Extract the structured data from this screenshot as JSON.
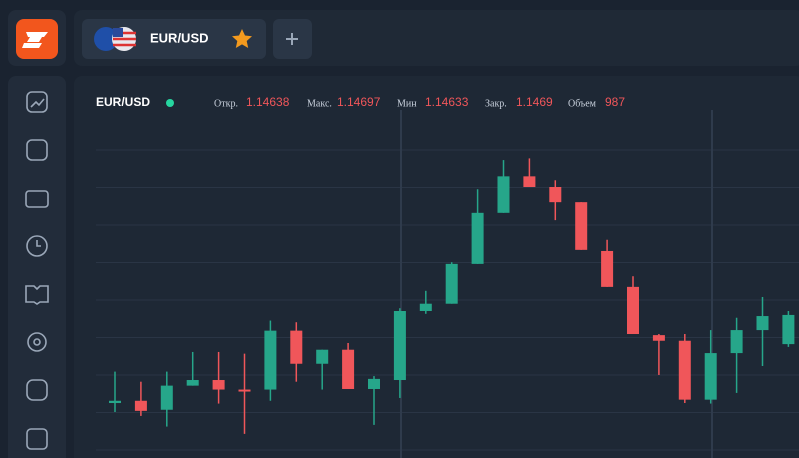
{
  "tab": {
    "symbol": "EUR/USD"
  },
  "header": {
    "symbol": "EUR/USD",
    "open_label": "Откр.",
    "open": 1.14638,
    "high_label": "Макс.",
    "high": 1.14697,
    "low_label": "Мин",
    "low": 1.14633,
    "close_label": "Закр.",
    "close": 1.1469,
    "volume_label": "Объем",
    "volume": 987
  },
  "chart_data": {
    "type": "candlestick",
    "ylim": [
      1.14435,
      1.15082
    ],
    "up_color": "#26a68a",
    "down_color": "#f0565a",
    "candles": [
      {
        "o": 1.14533,
        "h": 1.14589,
        "l": 1.14517,
        "c": 1.14537
      },
      {
        "o": 1.14537,
        "h": 1.14571,
        "l": 1.1451,
        "c": 1.14519
      },
      {
        "o": 1.14521,
        "h": 1.14589,
        "l": 1.14491,
        "c": 1.14564
      },
      {
        "o": 1.14564,
        "h": 1.14624,
        "l": 1.14564,
        "c": 1.14574
      },
      {
        "o": 1.14574,
        "h": 1.14624,
        "l": 1.14532,
        "c": 1.14557
      },
      {
        "o": 1.14557,
        "h": 1.14621,
        "l": 1.14478,
        "c": 1.14555
      },
      {
        "o": 1.14557,
        "h": 1.1468,
        "l": 1.14537,
        "c": 1.14662
      },
      {
        "o": 1.14662,
        "h": 1.14677,
        "l": 1.14571,
        "c": 1.14603
      },
      {
        "o": 1.14603,
        "h": 1.14628,
        "l": 1.14557,
        "c": 1.14628
      },
      {
        "o": 1.14628,
        "h": 1.1464,
        "l": 1.14558,
        "c": 1.14558
      },
      {
        "o": 1.14558,
        "h": 1.14581,
        "l": 1.14494,
        "c": 1.14576
      },
      {
        "o": 1.14574,
        "h": 1.14702,
        "l": 1.14542,
        "c": 1.14697
      },
      {
        "o": 1.14697,
        "h": 1.14733,
        "l": 1.14692,
        "c": 1.1471
      },
      {
        "o": 1.1471,
        "h": 1.14784,
        "l": 1.1471,
        "c": 1.14781
      },
      {
        "o": 1.14781,
        "h": 1.14914,
        "l": 1.14781,
        "c": 1.14872
      },
      {
        "o": 1.14872,
        "h": 1.14966,
        "l": 1.14872,
        "c": 1.14937
      },
      {
        "o": 1.14937,
        "h": 1.14969,
        "l": 1.14918,
        "c": 1.14918
      },
      {
        "o": 1.14918,
        "h": 1.1493,
        "l": 1.14859,
        "c": 1.14891
      },
      {
        "o": 1.14891,
        "h": 1.14891,
        "l": 1.14806,
        "c": 1.14806
      },
      {
        "o": 1.14804,
        "h": 1.14824,
        "l": 1.1474,
        "c": 1.1474
      },
      {
        "o": 1.1474,
        "h": 1.14759,
        "l": 1.14656,
        "c": 1.14656
      },
      {
        "o": 1.14654,
        "h": 1.14656,
        "l": 1.14583,
        "c": 1.14644
      },
      {
        "o": 1.14644,
        "h": 1.14656,
        "l": 1.14533,
        "c": 1.14539
      },
      {
        "o": 1.14539,
        "h": 1.14663,
        "l": 1.14532,
        "c": 1.14622
      },
      {
        "o": 1.14622,
        "h": 1.14685,
        "l": 1.14551,
        "c": 1.14663
      },
      {
        "o": 1.14663,
        "h": 1.14722,
        "l": 1.14599,
        "c": 1.14688
      }
    ]
  }
}
